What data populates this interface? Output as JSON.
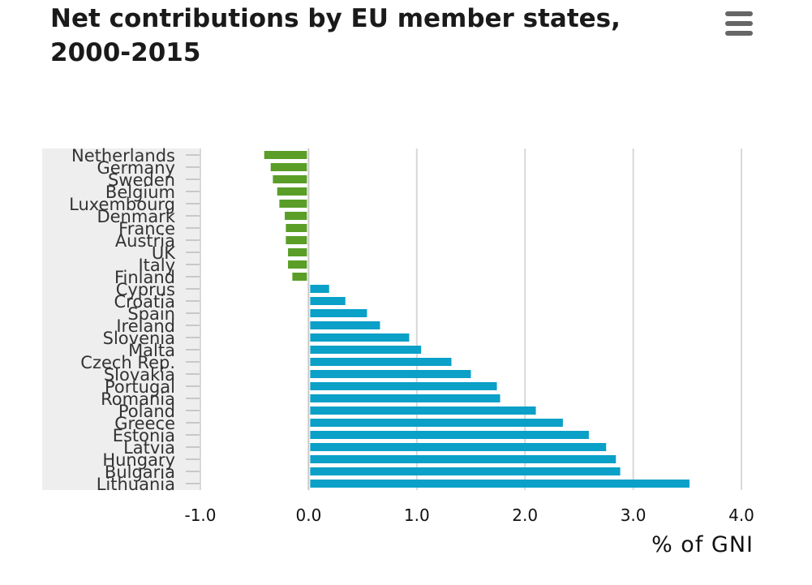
{
  "title": "Net contributions by EU member states, 2000-2015",
  "menu_icon": "hamburger-menu-icon",
  "colors": {
    "positive": "#0aa0c8",
    "negative": "#5a9e28",
    "label_band": "#eeeeee",
    "grid": "#d8d8d8",
    "text": "#333333"
  },
  "chart_data": {
    "type": "bar",
    "orientation": "horizontal",
    "title": "Net contributions by EU member states, 2000-2015",
    "xlabel": "% of GNI",
    "ylabel": "",
    "xlim": [
      -1.0,
      4.0
    ],
    "xticks": [
      "-1.0",
      "0.0",
      "1.0",
      "2.0",
      "3.0",
      "4.0"
    ],
    "grid": true,
    "legend": "none",
    "categories": [
      "Netherlands",
      "Germany",
      "Sweden",
      "Belgium",
      "Luxembourg",
      "Denmark",
      "France",
      "Austria",
      "UK",
      "Italy",
      "Finland",
      "Cyprus",
      "Croatia",
      "Spain",
      "Ireland",
      "Slovenia",
      "Malta",
      "Czech Rep.",
      "Slovakia",
      "Portugal",
      "Romania",
      "Poland",
      "Greece",
      "Estonia",
      "Latvia",
      "Hungary",
      "Bulgaria",
      "Lithuania"
    ],
    "values": [
      -0.41,
      -0.35,
      -0.33,
      -0.29,
      -0.27,
      -0.22,
      -0.21,
      -0.21,
      -0.19,
      -0.19,
      -0.15,
      0.19,
      0.34,
      0.54,
      0.66,
      0.93,
      1.04,
      1.32,
      1.5,
      1.74,
      1.77,
      2.1,
      2.35,
      2.59,
      2.75,
      2.84,
      2.88,
      3.52
    ]
  }
}
